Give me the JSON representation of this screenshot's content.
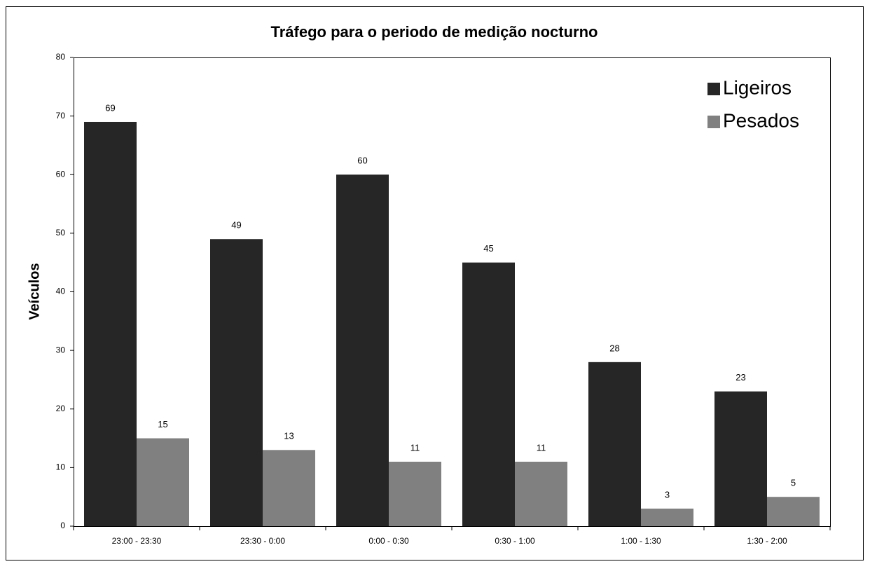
{
  "chart_data": {
    "type": "bar",
    "title": "Tráfego  para o periodo de medição nocturno",
    "y_label": "Veículos",
    "categories": [
      "23:00 - 23:30",
      "23:30 - 0:00",
      "0:00 - 0:30",
      "0:30 - 1:00",
      "1:00 - 1:30",
      "1:30 - 2:00"
    ],
    "series": [
      {
        "name": "Ligeiros",
        "color": "#262626",
        "values": [
          69,
          49,
          60,
          45,
          28,
          23
        ]
      },
      {
        "name": "Pesados",
        "color": "#808080",
        "values": [
          15,
          13,
          11,
          11,
          3,
          5
        ]
      }
    ],
    "ylim": [
      0,
      80
    ],
    "yticks": [
      0,
      10,
      20,
      30,
      40,
      50,
      60,
      70,
      80
    ],
    "grid": false,
    "legend": "top-right",
    "data_labels": true
  }
}
